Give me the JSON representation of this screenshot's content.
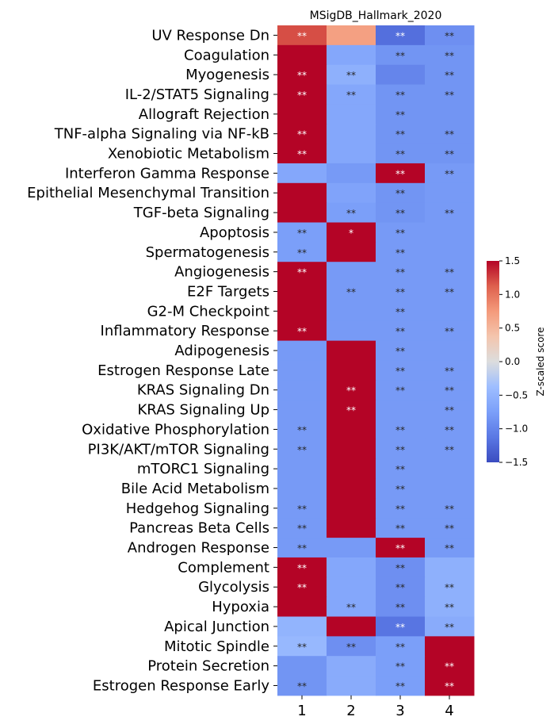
{
  "chart_data": {
    "type": "heatmap",
    "title": "MSigDB_Hallmark_2020",
    "columns": [
      "1",
      "2",
      "3",
      "4"
    ],
    "rows": [
      "UV Response Dn",
      "Coagulation",
      "Myogenesis",
      "IL-2/STAT5 Signaling",
      "Allograft Rejection",
      "TNF-alpha Signaling via NF-kB",
      "Xenobiotic Metabolism",
      "Interferon Gamma Response",
      "Epithelial Mesenchymal Transition",
      "TGF-beta Signaling",
      "Apoptosis",
      "Spermatogenesis",
      "Angiogenesis",
      "E2F Targets",
      "G2-M Checkpoint",
      "Inflammatory Response",
      "Adipogenesis",
      "Estrogen Response Late",
      "KRAS Signaling Dn",
      "KRAS Signaling Up",
      "Oxidative Phosphorylation",
      "PI3K/AKT/mTOR  Signaling",
      "mTORC1 Signaling",
      "Bile Acid Metabolism",
      "Hedgehog Signaling",
      "Pancreas Beta Cells",
      "Androgen Response",
      "Complement",
      "Glycolysis",
      "Hypoxia",
      "Apical Junction",
      "Mitotic Spindle",
      "Protein Secretion",
      "Estrogen Response Early"
    ],
    "values": [
      [
        1.2,
        0.7,
        -1.2,
        -0.9
      ],
      [
        1.5,
        -0.65,
        -0.85,
        -0.85
      ],
      [
        1.5,
        -0.55,
        -1.0,
        -0.85
      ],
      [
        1.5,
        -0.65,
        -0.85,
        -0.85
      ],
      [
        1.5,
        -0.65,
        -0.85,
        -0.85
      ],
      [
        1.5,
        -0.65,
        -0.85,
        -0.85
      ],
      [
        1.5,
        -0.65,
        -0.85,
        -0.85
      ],
      [
        -0.65,
        -0.8,
        1.5,
        -0.8
      ],
      [
        1.5,
        -0.7,
        -0.85,
        -0.8
      ],
      [
        1.5,
        -0.75,
        -0.85,
        -0.8
      ],
      [
        -0.75,
        1.5,
        -0.8,
        -0.8
      ],
      [
        -0.75,
        1.5,
        -0.8,
        -0.8
      ],
      [
        1.5,
        -0.8,
        -0.8,
        -0.8
      ],
      [
        1.5,
        -0.8,
        -0.8,
        -0.8
      ],
      [
        1.5,
        -0.8,
        -0.8,
        -0.8
      ],
      [
        1.5,
        -0.8,
        -0.8,
        -0.8
      ],
      [
        -0.8,
        1.5,
        -0.8,
        -0.8
      ],
      [
        -0.8,
        1.5,
        -0.8,
        -0.8
      ],
      [
        -0.8,
        1.5,
        -0.8,
        -0.8
      ],
      [
        -0.8,
        1.5,
        -0.8,
        -0.8
      ],
      [
        -0.8,
        1.5,
        -0.8,
        -0.8
      ],
      [
        -0.8,
        1.5,
        -0.8,
        -0.8
      ],
      [
        -0.8,
        1.5,
        -0.8,
        -0.8
      ],
      [
        -0.8,
        1.5,
        -0.8,
        -0.8
      ],
      [
        -0.8,
        1.5,
        -0.8,
        -0.8
      ],
      [
        -0.8,
        1.5,
        -0.8,
        -0.8
      ],
      [
        -0.8,
        -0.8,
        1.5,
        -0.8
      ],
      [
        1.5,
        -0.65,
        -0.9,
        -0.55
      ],
      [
        1.5,
        -0.65,
        -0.9,
        -0.55
      ],
      [
        1.5,
        -0.65,
        -0.9,
        -0.55
      ],
      [
        -0.5,
        1.5,
        -1.15,
        -0.6
      ],
      [
        -0.45,
        -0.9,
        -0.75,
        1.5
      ],
      [
        -0.85,
        -0.6,
        -0.75,
        1.5
      ],
      [
        -0.85,
        -0.6,
        -0.75,
        1.5
      ]
    ],
    "annotations": [
      [
        "**",
        "",
        "**",
        "**"
      ],
      [
        "",
        "",
        "**",
        "**"
      ],
      [
        "**",
        "**",
        "",
        "**"
      ],
      [
        "**",
        "**",
        "**",
        "**"
      ],
      [
        "",
        "",
        "**",
        ""
      ],
      [
        "**",
        "",
        "**",
        "**"
      ],
      [
        "**",
        "",
        "**",
        "**"
      ],
      [
        "",
        "",
        "**",
        "**"
      ],
      [
        "",
        "",
        "**",
        ""
      ],
      [
        "",
        "**",
        "**",
        "**"
      ],
      [
        "**",
        "*",
        "**",
        ""
      ],
      [
        "**",
        "",
        "**",
        ""
      ],
      [
        "**",
        "",
        "**",
        "**"
      ],
      [
        "",
        "**",
        "**",
        "**"
      ],
      [
        "",
        "",
        "**",
        ""
      ],
      [
        "**",
        "",
        "**",
        "**"
      ],
      [
        "",
        "",
        "**",
        ""
      ],
      [
        "",
        "",
        "**",
        "**"
      ],
      [
        "",
        "**",
        "**",
        "**"
      ],
      [
        "",
        "**",
        "",
        "**"
      ],
      [
        "**",
        "",
        "**",
        "**"
      ],
      [
        "**",
        "",
        "**",
        "**"
      ],
      [
        "",
        "",
        "**",
        ""
      ],
      [
        "",
        "",
        "**",
        ""
      ],
      [
        "**",
        "",
        "**",
        "**"
      ],
      [
        "**",
        "",
        "**",
        "**"
      ],
      [
        "**",
        "",
        "**",
        "**"
      ],
      [
        "**",
        "",
        "**",
        ""
      ],
      [
        "**",
        "",
        "**",
        "**"
      ],
      [
        "",
        "**",
        "**",
        "**"
      ],
      [
        "",
        "",
        "**",
        "**"
      ],
      [
        "**",
        "**",
        "**",
        ""
      ],
      [
        "",
        "",
        "**",
        "**"
      ],
      [
        "**",
        "",
        "**",
        "**"
      ]
    ],
    "colorbar": {
      "label": "Z-scaled score",
      "min": -1.5,
      "max": 1.5,
      "ticks": [
        "1.5",
        "1.0",
        "0.5",
        "0.0",
        "−0.5",
        "−1.0",
        "−1.5"
      ],
      "colormap": "coolwarm"
    }
  }
}
